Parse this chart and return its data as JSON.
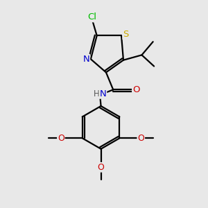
{
  "bg_color": "#e8e8e8",
  "atom_colors": {
    "C": "#000000",
    "N": "#0000cd",
    "O": "#cc0000",
    "S": "#ccaa00",
    "Cl": "#00bb00",
    "H": "#000000"
  },
  "bond_color": "#000000",
  "bond_width": 1.6,
  "fig_size": [
    3.0,
    3.0
  ],
  "dpi": 100,
  "xlim": [
    0,
    10
  ],
  "ylim": [
    0,
    10
  ]
}
